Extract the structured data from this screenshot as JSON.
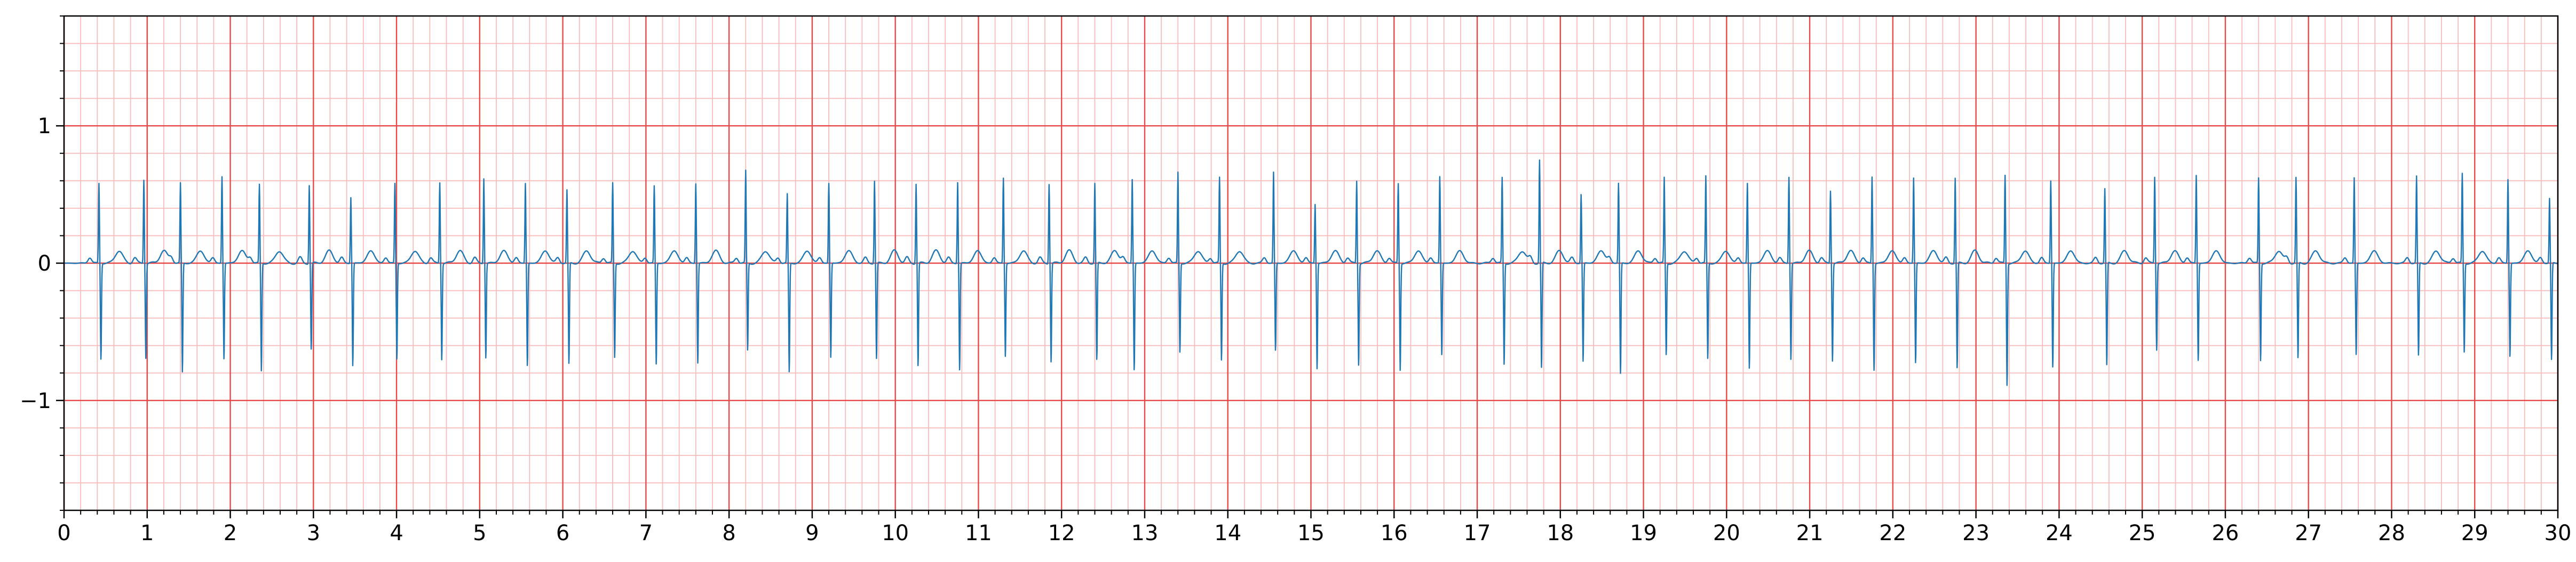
{
  "chart_data": {
    "type": "line",
    "title": "",
    "xlabel": "",
    "ylabel": "",
    "xlim": [
      0,
      30
    ],
    "ylim": [
      -1.8,
      1.8
    ],
    "x_ticks": [
      0,
      1,
      2,
      3,
      4,
      5,
      6,
      7,
      8,
      9,
      10,
      11,
      12,
      13,
      14,
      15,
      16,
      17,
      18,
      19,
      20,
      21,
      22,
      23,
      24,
      25,
      26,
      27,
      28,
      29,
      30
    ],
    "x_tick_labels": [
      "0",
      "1",
      "2",
      "3",
      "4",
      "5",
      "6",
      "7",
      "8",
      "9",
      "10",
      "11",
      "12",
      "13",
      "14",
      "15",
      "16",
      "17",
      "18",
      "19",
      "20",
      "21",
      "22",
      "23",
      "24",
      "25",
      "26",
      "27",
      "28",
      "29",
      "30"
    ],
    "y_ticks": [
      -1,
      0,
      1
    ],
    "y_tick_labels": [
      "−1",
      "0",
      "1"
    ],
    "grid": {
      "major_step_x": 1,
      "minor_step_x": 0.2,
      "major_step_y": 1,
      "minor_step_y": 0.2,
      "major_color": "#e84a4a",
      "minor_color": "#f8bcbc"
    },
    "series": [
      {
        "color": "#1f77b4",
        "beat_amplitude_range": [
          -0.9,
          0.75
        ],
        "beats": [
          {
            "t": 0.42,
            "r": 0.58,
            "s": -0.7
          },
          {
            "t": 0.96,
            "r": 0.61,
            "s": -0.69
          },
          {
            "t": 1.4,
            "r": 0.58,
            "s": -0.8
          },
          {
            "t": 1.9,
            "r": 0.63,
            "s": -0.7
          },
          {
            "t": 2.35,
            "r": 0.57,
            "s": -0.79
          },
          {
            "t": 2.95,
            "r": 0.57,
            "s": -0.63
          },
          {
            "t": 3.45,
            "r": 0.48,
            "s": -0.75
          },
          {
            "t": 3.98,
            "r": 0.58,
            "s": -0.7
          },
          {
            "t": 4.52,
            "r": 0.59,
            "s": -0.7
          },
          {
            "t": 5.05,
            "r": 0.62,
            "s": -0.69
          },
          {
            "t": 5.55,
            "r": 0.58,
            "s": -0.75
          },
          {
            "t": 6.05,
            "r": 0.53,
            "s": -0.74
          },
          {
            "t": 6.6,
            "r": 0.58,
            "s": -0.69
          },
          {
            "t": 7.1,
            "r": 0.56,
            "s": -0.74
          },
          {
            "t": 7.6,
            "r": 0.58,
            "s": -0.73
          },
          {
            "t": 8.2,
            "r": 0.67,
            "s": -0.64
          },
          {
            "t": 8.7,
            "r": 0.5,
            "s": -0.8
          },
          {
            "t": 9.2,
            "r": 0.58,
            "s": -0.69
          },
          {
            "t": 9.75,
            "r": 0.6,
            "s": -0.7
          },
          {
            "t": 10.25,
            "r": 0.58,
            "s": -0.75
          },
          {
            "t": 10.75,
            "r": 0.59,
            "s": -0.78
          },
          {
            "t": 11.3,
            "r": 0.62,
            "s": -0.68
          },
          {
            "t": 11.85,
            "r": 0.58,
            "s": -0.72
          },
          {
            "t": 12.4,
            "r": 0.58,
            "s": -0.71
          },
          {
            "t": 12.85,
            "r": 0.61,
            "s": -0.78
          },
          {
            "t": 13.4,
            "r": 0.66,
            "s": -0.65
          },
          {
            "t": 13.9,
            "r": 0.62,
            "s": -0.71
          },
          {
            "t": 14.55,
            "r": 0.66,
            "s": -0.64
          },
          {
            "t": 15.05,
            "r": 0.43,
            "s": -0.77
          },
          {
            "t": 15.55,
            "r": 0.6,
            "s": -0.74
          },
          {
            "t": 16.05,
            "r": 0.58,
            "s": -0.78
          },
          {
            "t": 16.55,
            "r": 0.63,
            "s": -0.67
          },
          {
            "t": 17.3,
            "r": 0.62,
            "s": -0.74
          },
          {
            "t": 17.75,
            "r": 0.75,
            "s": -0.77
          },
          {
            "t": 18.25,
            "r": 0.5,
            "s": -0.72
          },
          {
            "t": 18.7,
            "r": 0.58,
            "s": -0.81
          },
          {
            "t": 19.25,
            "r": 0.62,
            "s": -0.67
          },
          {
            "t": 19.75,
            "r": 0.63,
            "s": -0.7
          },
          {
            "t": 20.25,
            "r": 0.58,
            "s": -0.77
          },
          {
            "t": 20.75,
            "r": 0.63,
            "s": -0.7
          },
          {
            "t": 21.25,
            "r": 0.53,
            "s": -0.71
          },
          {
            "t": 21.75,
            "r": 0.63,
            "s": -0.78
          },
          {
            "t": 22.25,
            "r": 0.62,
            "s": -0.73
          },
          {
            "t": 22.75,
            "r": 0.62,
            "s": -0.77
          },
          {
            "t": 23.35,
            "r": 0.64,
            "s": -0.89
          },
          {
            "t": 23.9,
            "r": 0.6,
            "s": -0.76
          },
          {
            "t": 24.55,
            "r": 0.54,
            "s": -0.75
          },
          {
            "t": 25.15,
            "r": 0.63,
            "s": -0.63
          },
          {
            "t": 25.65,
            "r": 0.64,
            "s": -0.71
          },
          {
            "t": 26.4,
            "r": 0.62,
            "s": -0.71
          },
          {
            "t": 26.85,
            "r": 0.62,
            "s": -0.7
          },
          {
            "t": 27.55,
            "r": 0.62,
            "s": -0.67
          },
          {
            "t": 28.3,
            "r": 0.63,
            "s": -0.68
          },
          {
            "t": 28.85,
            "r": 0.65,
            "s": -0.65
          },
          {
            "t": 29.4,
            "r": 0.61,
            "s": -0.68
          },
          {
            "t": 29.9,
            "r": 0.47,
            "s": -0.71
          }
        ]
      }
    ]
  }
}
